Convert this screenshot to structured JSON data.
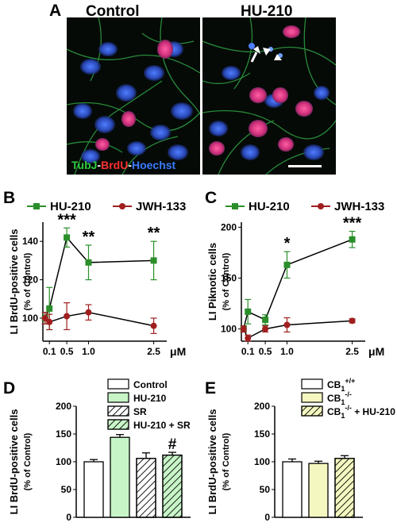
{
  "panels": {
    "A": {
      "letter": "A",
      "left_title": "Control",
      "right_title": "HU-210",
      "stain_parts": [
        {
          "text": "TubJ",
          "color": "#2ecc40"
        },
        {
          "text": "-",
          "color": "#ffffff"
        },
        {
          "text": "BrdU",
          "color": "#ff3030"
        },
        {
          "text": "-",
          "color": "#ffffff"
        },
        {
          "text": "Hoechst",
          "color": "#3b7bff"
        }
      ]
    },
    "B": {
      "letter": "B"
    },
    "C": {
      "letter": "C"
    },
    "D": {
      "letter": "D"
    },
    "E": {
      "letter": "E"
    }
  },
  "colors": {
    "hu210": "#2a8f2a",
    "jwh133": "#a01e1e",
    "bar_control": "#ffffff",
    "bar_hu210": "#c8f5c8",
    "bar_cb1_ko": "#f4f8c0",
    "bar_cb1_ko_hu": "#f4f8c0"
  },
  "chart_data": [
    {
      "panel": "B",
      "type": "line",
      "ylabel_lines": [
        "LI BrdU-positive cells",
        "(% of Control)"
      ],
      "x_unit": "μM",
      "x_ticks": [
        "0.1",
        "0.5",
        "1.0",
        "2.5"
      ],
      "x_tick_values": [
        0.1,
        0.5,
        1.0,
        2.5
      ],
      "y_ticks": [
        "100",
        "120",
        "140"
      ],
      "ylim": [
        88,
        150
      ],
      "xlim": [
        -0.05,
        2.8
      ],
      "series": [
        {
          "name": "HU-210",
          "x": [
            0,
            0.1,
            0.5,
            1.0,
            2.5
          ],
          "y": [
            100,
            105,
            142,
            129,
            130
          ],
          "err": [
            3,
            11,
            5,
            9,
            10
          ]
        },
        {
          "name": "JWH-133",
          "x": [
            0,
            0.1,
            0.5,
            1.0,
            2.5
          ],
          "y": [
            100,
            98,
            101,
            103,
            96
          ],
          "err": [
            3,
            4,
            7,
            4,
            4
          ]
        }
      ],
      "annotations": [
        {
          "x": 0.5,
          "text": "***"
        },
        {
          "x": 1.0,
          "text": "**"
        },
        {
          "x": 2.5,
          "text": "**"
        }
      ]
    },
    {
      "panel": "C",
      "type": "line",
      "ylabel_lines": [
        "LI Piknotic cells",
        "(% of Control)"
      ],
      "x_unit": "μM",
      "x_ticks": [
        "0.1",
        "0.5",
        "1.0",
        "2.5"
      ],
      "x_tick_values": [
        0.1,
        0.5,
        1.0,
        2.5
      ],
      "y_ticks": [
        "100",
        "150",
        "200"
      ],
      "ylim": [
        88,
        205
      ],
      "xlim": [
        -0.05,
        2.8
      ],
      "series": [
        {
          "name": "HU-210",
          "x": [
            0,
            0.1,
            0.5,
            1.0,
            2.5
          ],
          "y": [
            100,
            117,
            109,
            163,
            188
          ],
          "err": [
            3,
            12,
            5,
            13,
            8
          ]
        },
        {
          "name": "JWH-133",
          "x": [
            0,
            0.1,
            0.5,
            1.0,
            2.5
          ],
          "y": [
            100,
            91,
            100,
            104,
            108
          ],
          "err": [
            3,
            3,
            3,
            7,
            2
          ]
        }
      ],
      "annotations": [
        {
          "x": 1.0,
          "text": "*"
        },
        {
          "x": 2.5,
          "text": "***"
        }
      ]
    },
    {
      "panel": "D",
      "type": "bar",
      "ylabel_lines": [
        "LI BrdU-positive cells",
        "(% of Control)"
      ],
      "y_ticks": [
        "0",
        "50",
        "100",
        "150",
        "200"
      ],
      "ylim": [
        0,
        200
      ],
      "categories": [
        "Control",
        "HU-210",
        "SR",
        "HU-210 + SR"
      ],
      "values": [
        100,
        144,
        106,
        112
      ],
      "errors": [
        4,
        5,
        10,
        5
      ],
      "annotations": [
        "",
        "***",
        "",
        "#"
      ]
    },
    {
      "panel": "E",
      "type": "bar",
      "ylabel_lines": [
        "LI BrdU-positive cells",
        "(% of Control)"
      ],
      "y_ticks": [
        "0",
        "50",
        "100",
        "150",
        "200"
      ],
      "ylim": [
        0,
        200
      ],
      "categories": [
        {
          "base": "CB",
          "sub": "1",
          "sup": "+/+",
          "rest": ""
        },
        {
          "base": "CB",
          "sub": "1",
          "sup": "-/-",
          "rest": ""
        },
        {
          "base": "CB",
          "sub": "1",
          "sup": "-/-",
          "rest": " + HU-210"
        }
      ],
      "values": [
        100,
        97,
        106
      ],
      "errors": [
        5,
        4,
        5
      ]
    }
  ]
}
